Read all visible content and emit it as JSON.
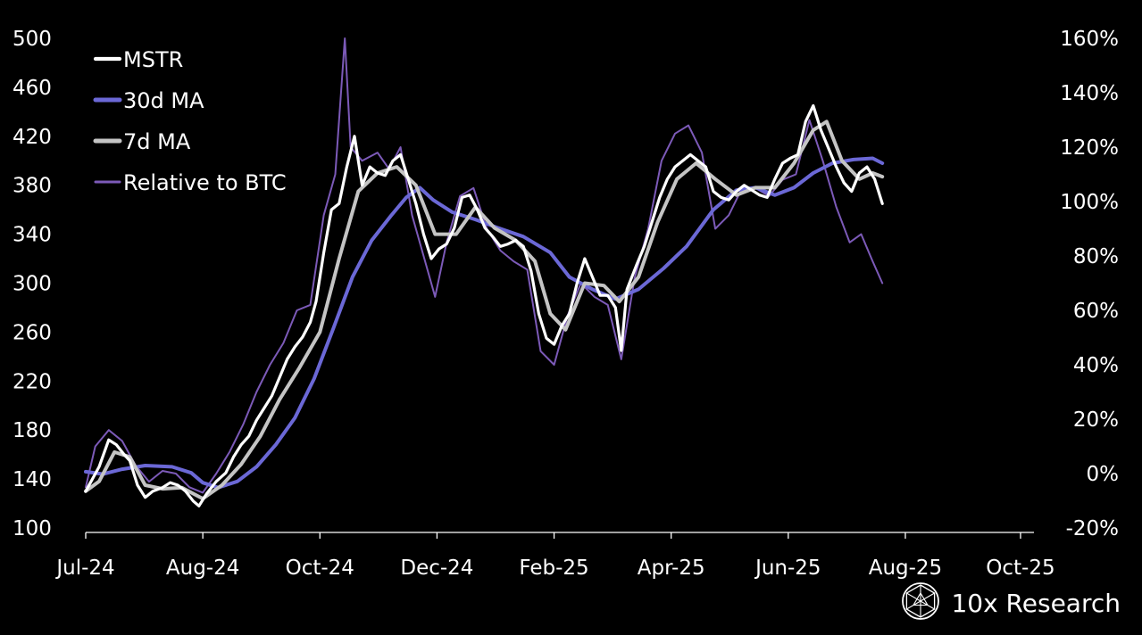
{
  "brand": {
    "name": "10x Research",
    "logo_icon": "geometric-sphere-logo-icon"
  },
  "colors": {
    "background": "#000000",
    "MSTR": "#ffffff",
    "30d MA": "#6b68d6",
    "7d MA": "#c4c4c4",
    "Relative to BTC": "#7c5ab8",
    "axis": "#ffffff"
  },
  "chart_data": {
    "type": "line",
    "title": "",
    "xlabel": "",
    "ylabel": "",
    "y2label": "",
    "x_ticks": [
      "Jul-24",
      "Aug-24",
      "Oct-24",
      "Dec-24",
      "Feb-25",
      "Apr-25",
      "Jun-25",
      "Aug-25",
      "Oct-25"
    ],
    "x_tick_dates": [
      "2024-07-01",
      "2024-08-31",
      "2024-10-31",
      "2024-12-31",
      "2025-03-02",
      "2025-05-02",
      "2025-07-02",
      "2025-09-01",
      "2025-10-31"
    ],
    "xlim": [
      "2024-07-01",
      "2025-11-07"
    ],
    "y_ticks": [
      "500",
      "460",
      "420",
      "380",
      "340",
      "300",
      "260",
      "220",
      "180",
      "140",
      "100"
    ],
    "ylim": [
      100,
      500
    ],
    "y2_ticks": [
      "160%",
      "140%",
      "120%",
      "100%",
      "80%",
      "60%",
      "40%",
      "20%",
      "0%",
      "-20%"
    ],
    "y2lim": [
      -20,
      160
    ],
    "grid": false,
    "legend_position": "top-left",
    "series": [
      {
        "name": "MSTR",
        "axis": "left",
        "points": [
          [
            "2024-07-01",
            130
          ],
          [
            "2024-07-08",
            150
          ],
          [
            "2024-07-13",
            172
          ],
          [
            "2024-07-17",
            168
          ],
          [
            "2024-07-21",
            160
          ],
          [
            "2024-07-24",
            155
          ],
          [
            "2024-07-28",
            135
          ],
          [
            "2024-08-01",
            125
          ],
          [
            "2024-08-05",
            130
          ],
          [
            "2024-08-10",
            133
          ],
          [
            "2024-08-14",
            137
          ],
          [
            "2024-08-18",
            135
          ],
          [
            "2024-08-22",
            130
          ],
          [
            "2024-08-26",
            122
          ],
          [
            "2024-08-29",
            118
          ],
          [
            "2024-09-02",
            128
          ],
          [
            "2024-09-07",
            138
          ],
          [
            "2024-09-12",
            145
          ],
          [
            "2024-09-16",
            158
          ],
          [
            "2024-09-20",
            168
          ],
          [
            "2024-09-24",
            175
          ],
          [
            "2024-09-28",
            188
          ],
          [
            "2024-10-02",
            198
          ],
          [
            "2024-10-06",
            208
          ],
          [
            "2024-10-10",
            223
          ],
          [
            "2024-10-14",
            238
          ],
          [
            "2024-10-18",
            248
          ],
          [
            "2024-10-22",
            256
          ],
          [
            "2024-10-26",
            268
          ],
          [
            "2024-10-29",
            285
          ],
          [
            "2024-11-02",
            325
          ],
          [
            "2024-11-06",
            360
          ],
          [
            "2024-11-10",
            365
          ],
          [
            "2024-11-14",
            395
          ],
          [
            "2024-11-18",
            420
          ],
          [
            "2024-11-22",
            380
          ],
          [
            "2024-11-26",
            395
          ],
          [
            "2024-11-30",
            390
          ],
          [
            "2024-12-04",
            388
          ],
          [
            "2024-12-08",
            400
          ],
          [
            "2024-12-12",
            405
          ],
          [
            "2024-12-16",
            385
          ],
          [
            "2024-12-20",
            365
          ],
          [
            "2024-12-24",
            340
          ],
          [
            "2024-12-28",
            320
          ],
          [
            "2025-01-01",
            328
          ],
          [
            "2025-01-05",
            332
          ],
          [
            "2025-01-09",
            345
          ],
          [
            "2025-01-13",
            370
          ],
          [
            "2025-01-17",
            372
          ],
          [
            "2025-01-21",
            360
          ],
          [
            "2025-01-25",
            345
          ],
          [
            "2025-01-29",
            338
          ],
          [
            "2025-02-02",
            330
          ],
          [
            "2025-02-06",
            332
          ],
          [
            "2025-02-10",
            335
          ],
          [
            "2025-02-14",
            330
          ],
          [
            "2025-02-18",
            310
          ],
          [
            "2025-02-22",
            275
          ],
          [
            "2025-02-26",
            255
          ],
          [
            "2025-03-02",
            250
          ],
          [
            "2025-03-06",
            265
          ],
          [
            "2025-03-10",
            275
          ],
          [
            "2025-03-14",
            300
          ],
          [
            "2025-03-18",
            320
          ],
          [
            "2025-03-22",
            305
          ],
          [
            "2025-03-26",
            290
          ],
          [
            "2025-03-30",
            290
          ],
          [
            "2025-04-03",
            280
          ],
          [
            "2025-04-06",
            245
          ],
          [
            "2025-04-09",
            295
          ],
          [
            "2025-04-14",
            315
          ],
          [
            "2025-04-18",
            330
          ],
          [
            "2025-04-22",
            350
          ],
          [
            "2025-04-26",
            370
          ],
          [
            "2025-04-30",
            385
          ],
          [
            "2025-05-04",
            395
          ],
          [
            "2025-05-08",
            400
          ],
          [
            "2025-05-12",
            405
          ],
          [
            "2025-05-16",
            400
          ],
          [
            "2025-05-20",
            395
          ],
          [
            "2025-05-24",
            375
          ],
          [
            "2025-05-28",
            370
          ],
          [
            "2025-06-01",
            368
          ],
          [
            "2025-06-05",
            375
          ],
          [
            "2025-06-09",
            380
          ],
          [
            "2025-06-13",
            376
          ],
          [
            "2025-06-17",
            372
          ],
          [
            "2025-06-21",
            370
          ],
          [
            "2025-06-25",
            385
          ],
          [
            "2025-06-29",
            398
          ],
          [
            "2025-07-03",
            402
          ],
          [
            "2025-07-07",
            405
          ],
          [
            "2025-07-11",
            432
          ],
          [
            "2025-07-15",
            445
          ],
          [
            "2025-07-19",
            425
          ],
          [
            "2025-07-23",
            410
          ],
          [
            "2025-07-27",
            395
          ],
          [
            "2025-07-31",
            382
          ],
          [
            "2025-08-04",
            375
          ],
          [
            "2025-08-08",
            390
          ],
          [
            "2025-08-12",
            395
          ],
          [
            "2025-08-16",
            385
          ],
          [
            "2025-08-20",
            365
          ]
        ]
      },
      {
        "name": "30d MA",
        "axis": "left",
        "points": [
          [
            "2024-07-01",
            146
          ],
          [
            "2024-07-10",
            144
          ],
          [
            "2024-07-20",
            148
          ],
          [
            "2024-08-01",
            151
          ],
          [
            "2024-08-15",
            150
          ],
          [
            "2024-08-25",
            145
          ],
          [
            "2024-08-31",
            137
          ],
          [
            "2024-09-08",
            133
          ],
          [
            "2024-09-18",
            138
          ],
          [
            "2024-09-28",
            150
          ],
          [
            "2024-10-08",
            168
          ],
          [
            "2024-10-18",
            190
          ],
          [
            "2024-10-28",
            222
          ],
          [
            "2024-11-07",
            263
          ],
          [
            "2024-11-17",
            305
          ],
          [
            "2024-11-27",
            335
          ],
          [
            "2024-12-07",
            355
          ],
          [
            "2024-12-15",
            370
          ],
          [
            "2024-12-22",
            378
          ],
          [
            "2024-12-29",
            368
          ],
          [
            "2025-01-08",
            358
          ],
          [
            "2025-01-20",
            352
          ],
          [
            "2025-02-01",
            345
          ],
          [
            "2025-02-14",
            338
          ],
          [
            "2025-02-28",
            325
          ],
          [
            "2025-03-10",
            305
          ],
          [
            "2025-03-22",
            295
          ],
          [
            "2025-04-03",
            287
          ],
          [
            "2025-04-15",
            295
          ],
          [
            "2025-04-28",
            312
          ],
          [
            "2025-05-10",
            330
          ],
          [
            "2025-05-24",
            360
          ],
          [
            "2025-06-05",
            376
          ],
          [
            "2025-06-15",
            378
          ],
          [
            "2025-06-25",
            372
          ],
          [
            "2025-07-05",
            378
          ],
          [
            "2025-07-15",
            390
          ],
          [
            "2025-07-25",
            398
          ],
          [
            "2025-08-05",
            401
          ],
          [
            "2025-08-15",
            402
          ],
          [
            "2025-08-20",
            398
          ]
        ]
      },
      {
        "name": "7d MA",
        "axis": "left",
        "points": [
          [
            "2024-07-01",
            130
          ],
          [
            "2024-07-08",
            138
          ],
          [
            "2024-07-16",
            162
          ],
          [
            "2024-07-24",
            158
          ],
          [
            "2024-08-01",
            135
          ],
          [
            "2024-08-10",
            132
          ],
          [
            "2024-08-20",
            133
          ],
          [
            "2024-08-31",
            124
          ],
          [
            "2024-09-10",
            135
          ],
          [
            "2024-09-20",
            152
          ],
          [
            "2024-09-30",
            175
          ],
          [
            "2024-10-10",
            205
          ],
          [
            "2024-10-20",
            230
          ],
          [
            "2024-10-31",
            260
          ],
          [
            "2024-11-10",
            320
          ],
          [
            "2024-11-20",
            375
          ],
          [
            "2024-11-30",
            390
          ],
          [
            "2024-12-10",
            395
          ],
          [
            "2024-12-20",
            380
          ],
          [
            "2024-12-30",
            340
          ],
          [
            "2025-01-10",
            340
          ],
          [
            "2025-01-20",
            362
          ],
          [
            "2025-01-30",
            345
          ],
          [
            "2025-02-10",
            335
          ],
          [
            "2025-02-20",
            318
          ],
          [
            "2025-02-28",
            275
          ],
          [
            "2025-03-08",
            262
          ],
          [
            "2025-03-18",
            300
          ],
          [
            "2025-03-28",
            298
          ],
          [
            "2025-04-05",
            285
          ],
          [
            "2025-04-15",
            305
          ],
          [
            "2025-04-25",
            350
          ],
          [
            "2025-05-05",
            385
          ],
          [
            "2025-05-15",
            398
          ],
          [
            "2025-05-25",
            385
          ],
          [
            "2025-06-05",
            372
          ],
          [
            "2025-06-15",
            378
          ],
          [
            "2025-06-25",
            378
          ],
          [
            "2025-07-05",
            398
          ],
          [
            "2025-07-15",
            425
          ],
          [
            "2025-07-22",
            432
          ],
          [
            "2025-07-30",
            400
          ],
          [
            "2025-08-08",
            385
          ],
          [
            "2025-08-15",
            390
          ],
          [
            "2025-08-20",
            387
          ]
        ]
      },
      {
        "name": "Relative to BTC",
        "axis": "right",
        "points": [
          [
            "2024-07-01",
            -5
          ],
          [
            "2024-07-06",
            10
          ],
          [
            "2024-07-13",
            16
          ],
          [
            "2024-07-20",
            12
          ],
          [
            "2024-07-27",
            3
          ],
          [
            "2024-08-03",
            -3
          ],
          [
            "2024-08-10",
            1
          ],
          [
            "2024-08-17",
            0
          ],
          [
            "2024-08-24",
            -5
          ],
          [
            "2024-08-31",
            -7
          ],
          [
            "2024-09-07",
            0
          ],
          [
            "2024-09-14",
            8
          ],
          [
            "2024-09-21",
            18
          ],
          [
            "2024-09-28",
            30
          ],
          [
            "2024-10-05",
            40
          ],
          [
            "2024-10-12",
            48
          ],
          [
            "2024-10-19",
            60
          ],
          [
            "2024-10-26",
            62
          ],
          [
            "2024-11-02",
            95
          ],
          [
            "2024-11-08",
            110
          ],
          [
            "2024-11-13",
            160
          ],
          [
            "2024-11-16",
            120
          ],
          [
            "2024-11-22",
            115
          ],
          [
            "2024-11-30",
            118
          ],
          [
            "2024-12-06",
            112
          ],
          [
            "2024-12-12",
            120
          ],
          [
            "2024-12-18",
            95
          ],
          [
            "2024-12-24",
            80
          ],
          [
            "2024-12-30",
            65
          ],
          [
            "2025-01-05",
            85
          ],
          [
            "2025-01-12",
            102
          ],
          [
            "2025-01-19",
            105
          ],
          [
            "2025-01-26",
            90
          ],
          [
            "2025-02-02",
            82
          ],
          [
            "2025-02-09",
            78
          ],
          [
            "2025-02-16",
            75
          ],
          [
            "2025-02-23",
            45
          ],
          [
            "2025-03-02",
            40
          ],
          [
            "2025-03-09",
            58
          ],
          [
            "2025-03-16",
            70
          ],
          [
            "2025-03-23",
            65
          ],
          [
            "2025-03-30",
            62
          ],
          [
            "2025-04-06",
            42
          ],
          [
            "2025-04-13",
            72
          ],
          [
            "2025-04-20",
            90
          ],
          [
            "2025-04-27",
            115
          ],
          [
            "2025-05-04",
            125
          ],
          [
            "2025-05-11",
            128
          ],
          [
            "2025-05-18",
            118
          ],
          [
            "2025-05-25",
            90
          ],
          [
            "2025-06-01",
            95
          ],
          [
            "2025-06-08",
            105
          ],
          [
            "2025-06-15",
            105
          ],
          [
            "2025-06-22",
            102
          ],
          [
            "2025-06-29",
            108
          ],
          [
            "2025-07-06",
            110
          ],
          [
            "2025-07-13",
            130
          ],
          [
            "2025-07-20",
            115
          ],
          [
            "2025-07-27",
            98
          ],
          [
            "2025-08-03",
            85
          ],
          [
            "2025-08-09",
            88
          ],
          [
            "2025-08-15",
            78
          ],
          [
            "2025-08-20",
            70
          ]
        ]
      }
    ]
  }
}
